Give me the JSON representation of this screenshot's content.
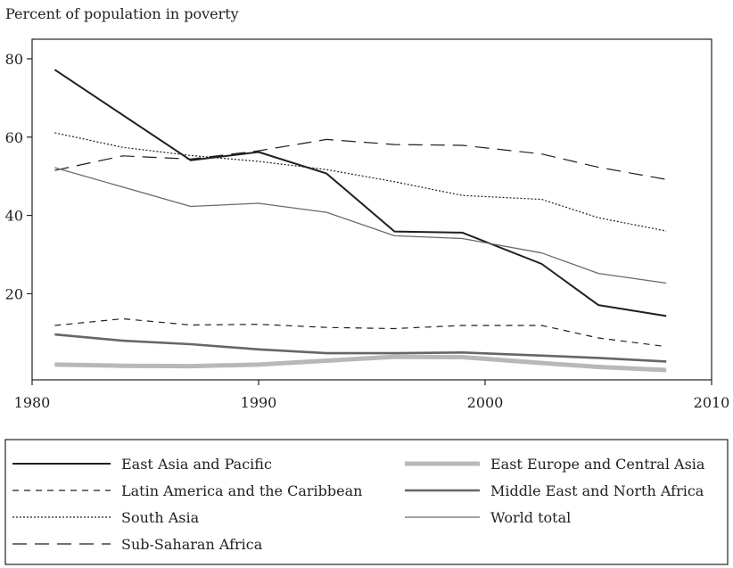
{
  "chart_data": {
    "type": "line",
    "title": "",
    "ylabel": "Percent of population in poverty",
    "xlabel": "",
    "xlim": [
      1980,
      2010
    ],
    "ylim": [
      -2,
      85
    ],
    "x_ticks": [
      1980,
      1990,
      2000,
      2010
    ],
    "y_ticks": [
      20,
      40,
      60,
      80
    ],
    "grid": false,
    "legend_position": "bottom",
    "series": [
      {
        "name": "East Asia and Pacific",
        "x": [
          1981,
          1987,
          1990,
          1993,
          1996,
          1999,
          2002.5,
          2005,
          2008
        ],
        "y": [
          77.2,
          54.1,
          56.2,
          50.7,
          35.9,
          35.6,
          27.6,
          17.1,
          14.3
        ]
      },
      {
        "name": "Latin America and the Caribbean",
        "x": [
          1981,
          1984,
          1987,
          1990,
          1993,
          1996,
          1999,
          2002.5,
          2005,
          2008
        ],
        "y": [
          11.9,
          13.6,
          12.0,
          12.2,
          11.4,
          11.1,
          11.9,
          11.9,
          8.7,
          6.5
        ]
      },
      {
        "name": "South Asia",
        "x": [
          1981,
          1984,
          1987,
          1990,
          1993,
          1996,
          1999,
          2002.5,
          2005,
          2008
        ],
        "y": [
          61.1,
          57.4,
          55.3,
          53.8,
          51.7,
          48.6,
          45.1,
          44.1,
          39.4,
          36.0
        ]
      },
      {
        "name": "Sub-Saharan Africa",
        "x": [
          1981,
          1984,
          1987,
          1990,
          1993,
          1996,
          1999,
          2002.5,
          2005,
          2008
        ],
        "y": [
          51.5,
          55.2,
          54.4,
          56.5,
          59.4,
          58.1,
          57.9,
          55.7,
          52.3,
          49.2
        ]
      },
      {
        "name": "East Europe and Central Asia",
        "x": [
          1981,
          1984,
          1987,
          1990,
          1993,
          1996,
          1999,
          2002.5,
          2005,
          2008
        ],
        "y": [
          1.9,
          1.6,
          1.5,
          1.9,
          2.9,
          3.9,
          3.8,
          2.3,
          1.3,
          0.5
        ]
      },
      {
        "name": "Middle East and North Africa",
        "x": [
          1981,
          1984,
          1987,
          1990,
          1993,
          1996,
          1999,
          2002.5,
          2005,
          2008
        ],
        "y": [
          9.6,
          8.0,
          7.1,
          5.8,
          4.8,
          4.8,
          5.0,
          4.2,
          3.6,
          2.7
        ]
      },
      {
        "name": "World total",
        "x": [
          1981,
          1987,
          1990,
          1993,
          1996,
          1999,
          2002.5,
          2005,
          2008
        ],
        "y": [
          52.2,
          42.3,
          43.1,
          40.8,
          34.8,
          34.1,
          30.4,
          25.2,
          22.7
        ]
      }
    ],
    "styles": {
      "East Asia and Pacific": {
        "color": "#1f1f1f",
        "dash": "",
        "width": 2
      },
      "Latin America and the Caribbean": {
        "color": "#1f1f1f",
        "dash": "7,6",
        "width": 1.2
      },
      "South Asia": {
        "color": "#1f1f1f",
        "dash": "2,2",
        "width": 1.2
      },
      "Sub-Saharan Africa": {
        "color": "#1f1f1f",
        "dash": "16,9",
        "width": 1.2
      },
      "East Europe and Central Asia": {
        "color": "#b8b8b8",
        "dash": "",
        "width": 5
      },
      "Middle East and North Africa": {
        "color": "#666666",
        "dash": "",
        "width": 2.6
      },
      "World total": {
        "color": "#6a6a6a",
        "dash": "",
        "width": 1.3
      }
    }
  }
}
